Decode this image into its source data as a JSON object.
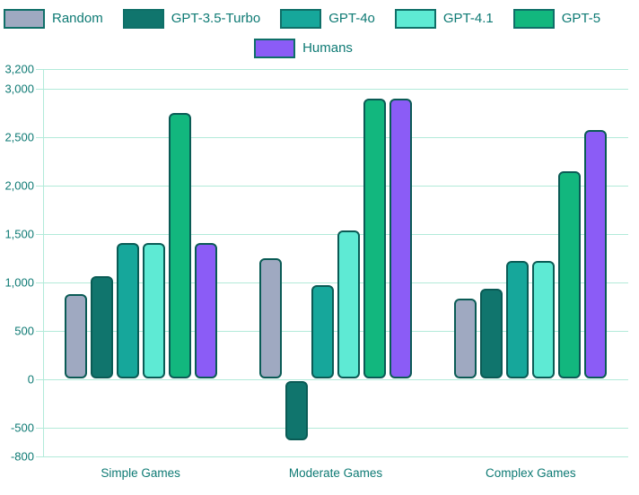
{
  "chart_data": {
    "type": "bar",
    "title": "",
    "xlabel": "",
    "ylabel": "",
    "categories": [
      "Simple Games",
      "Moderate Games",
      "Complex Games"
    ],
    "series": [
      {
        "name": "Random",
        "color": "#9fa9c1",
        "values": [
          880,
          1250,
          830
        ]
      },
      {
        "name": "GPT-3.5-Turbo",
        "color": "#10756d",
        "values": [
          1060,
          -630,
          930
        ]
      },
      {
        "name": "GPT-4o",
        "color": "#16a79b",
        "values": [
          1400,
          970,
          1220
        ]
      },
      {
        "name": "GPT-4.1",
        "color": "#5eead4",
        "values": [
          1400,
          1530,
          1220
        ]
      },
      {
        "name": "GPT-5",
        "color": "#12b77e",
        "values": [
          2750,
          2890,
          2140
        ]
      },
      {
        "name": "Humans",
        "color": "#8b5cf6",
        "values": [
          1400,
          2890,
          2570
        ]
      }
    ],
    "yticks": [
      3200,
      3000,
      2500,
      2000,
      1500,
      1000,
      500,
      0,
      -500,
      -800
    ],
    "ytick_labels": [
      "3,200",
      "3,000",
      "2,500",
      "2,000",
      "1,500",
      "1,000",
      "500",
      "0",
      "-500",
      "-800"
    ],
    "ylim": [
      -800,
      3200
    ],
    "grid": true,
    "legend_position": "top",
    "colors": {
      "bar_border": "#0a5b55",
      "grid": "#b2ead9",
      "text": "#0e7a74",
      "background": "#ffffff"
    }
  }
}
